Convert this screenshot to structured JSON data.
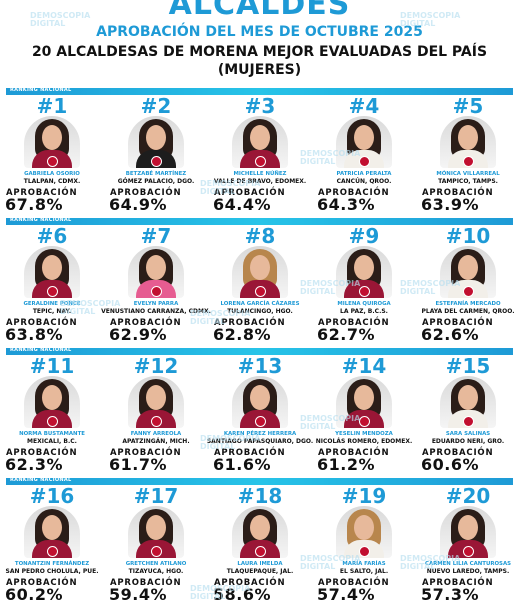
{
  "header": {
    "title": "ALCALDES",
    "subtitle": "APROBACIÓN DEL MES DE OCTUBRE 2025",
    "heading_line1": "20 ALCALDESAS DE MORENA MEJOR EVALUADAS DEL PAÍS",
    "heading_line2": "(MUJERES)"
  },
  "band_label": "RANKING NACIONAL",
  "approval_label": "APROBACIÓN",
  "watermark": "DEMOSCOPIA\nDIGITAL",
  "colors": {
    "accent": "#1e9ad6",
    "text": "#111111",
    "party": "#9a1636"
  },
  "ranking": [
    {
      "rank": "#1",
      "name": "GABRIELA OSORIO",
      "location": "TLALPAN, CDMX.",
      "approval": "67.8%"
    },
    {
      "rank": "#2",
      "name": "BETZABÉ MARTÍNEZ",
      "location": "GÓMEZ PALACIO, DGO.",
      "approval": "64.9%"
    },
    {
      "rank": "#3",
      "name": "MICHELLE NÚÑEZ",
      "location": "VALLE DE BRAVO, EDOMEX.",
      "approval": "64.4%"
    },
    {
      "rank": "#4",
      "name": "PATRICIA PERALTA",
      "location": "CANCÚN, QROO.",
      "approval": "64.3%"
    },
    {
      "rank": "#5",
      "name": "MÓNICA VILLARREAL",
      "location": "TAMPICO, TAMPS.",
      "approval": "63.9%"
    },
    {
      "rank": "#6",
      "name": "GERALDINE PONCE",
      "location": "TEPIC, NAY.",
      "approval": "63.8%"
    },
    {
      "rank": "#7",
      "name": "EVELYN PARRA",
      "location": "VENUSTIANO CARRANZA, CDMX.",
      "approval": "62.9%"
    },
    {
      "rank": "#8",
      "name": "LORENA GARCÍA CÁZARES",
      "location": "TULANCINGO, HGO.",
      "approval": "62.8%"
    },
    {
      "rank": "#9",
      "name": "MILENA QUIROGA",
      "location": "LA PAZ, B.C.S.",
      "approval": "62.7%"
    },
    {
      "rank": "#10",
      "name": "ESTEFANÍA MERCADO",
      "location": "PLAYA DEL CARMEN, QROO.",
      "approval": "62.6%"
    },
    {
      "rank": "#11",
      "name": "NORMA BUSTAMANTE",
      "location": "MEXICALI, B.C.",
      "approval": "62.3%"
    },
    {
      "rank": "#12",
      "name": "FANNY ARREOLA",
      "location": "APATZINGÁN, MICH.",
      "approval": "61.7%"
    },
    {
      "rank": "#13",
      "name": "KAREN PÉREZ HERRERA",
      "location": "SANTIAGO PAPASQUIARO, DGO.",
      "approval": "61.6%"
    },
    {
      "rank": "#14",
      "name": "YESELIN MENDOZA",
      "location": "NICOLÁS ROMERO, EDOMEX.",
      "approval": "61.2%"
    },
    {
      "rank": "#15",
      "name": "SARA SALINAS",
      "location": "EDUARDO NERI, GRO.",
      "approval": "60.6%"
    },
    {
      "rank": "#16",
      "name": "TONANTZIN FERNÁNDEZ",
      "location": "SAN PEDRO CHOLULA, PUE.",
      "approval": "60.2%"
    },
    {
      "rank": "#17",
      "name": "GRETCHEN ATILANO",
      "location": "TIZAYUCA, HGO.",
      "approval": "59.4%"
    },
    {
      "rank": "#18",
      "name": "LAURA IMELDA",
      "location": "TLAQUEPAQUE, JAL.",
      "approval": "58.6%"
    },
    {
      "rank": "#19",
      "name": "MARÍA FARÍAS",
      "location": "EL SALTO, JAL.",
      "approval": "57.4%"
    },
    {
      "rank": "#20",
      "name": "CARMEN LILIA CANTUROSAS",
      "location": "NUEVO LAREDO, TAMPS.",
      "approval": "57.3%"
    }
  ]
}
